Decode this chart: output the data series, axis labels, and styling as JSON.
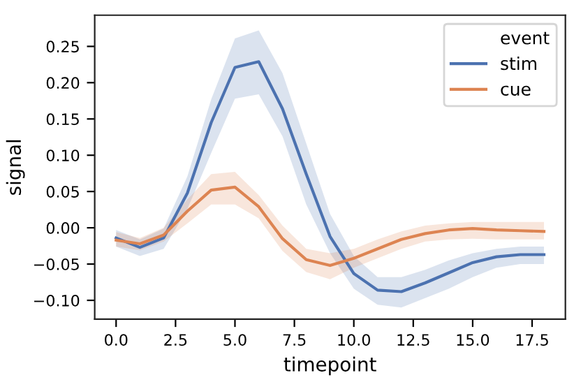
{
  "chart_data": {
    "type": "line",
    "xlabel": "timepoint",
    "ylabel": "signal",
    "legend_title": "event",
    "legend": "top right",
    "grid": false,
    "marker": "none",
    "line_style": "solid",
    "x": [
      0,
      1,
      2,
      3,
      4,
      5,
      6,
      7,
      8,
      9,
      10,
      11,
      12,
      13,
      14,
      15,
      16,
      17,
      18
    ],
    "xlim": [
      -0.9,
      18.9
    ],
    "xticks": [
      {
        "value": 0,
        "label": "0.0"
      },
      {
        "value": 2.5,
        "label": "2.5"
      },
      {
        "value": 5,
        "label": "5.0"
      },
      {
        "value": 7.5,
        "label": "7.5"
      },
      {
        "value": 10,
        "label": "10.0"
      },
      {
        "value": 12.5,
        "label": "12.5"
      },
      {
        "value": 15,
        "label": "15.0"
      },
      {
        "value": 17.5,
        "label": "17.5"
      }
    ],
    "ylim": [
      -0.126,
      0.293
    ],
    "yticks": [
      {
        "value": -0.1,
        "label": "−0.10"
      },
      {
        "value": -0.05,
        "label": "−0.05"
      },
      {
        "value": 0,
        "label": "0.00"
      },
      {
        "value": 0.05,
        "label": "0.05"
      },
      {
        "value": 0.1,
        "label": "0.10"
      },
      {
        "value": 0.15,
        "label": "0.15"
      },
      {
        "value": 0.2,
        "label": "0.20"
      },
      {
        "value": 0.25,
        "label": "0.25"
      }
    ],
    "series": [
      {
        "name": "stim",
        "color": "#4c72b0",
        "values": [
          -0.014,
          -0.027,
          -0.014,
          0.048,
          0.145,
          0.221,
          0.229,
          0.164,
          0.074,
          -0.012,
          -0.063,
          -0.086,
          -0.088,
          -0.076,
          -0.062,
          -0.048,
          -0.04,
          -0.037,
          -0.037
        ],
        "lower": [
          -0.026,
          -0.039,
          -0.029,
          0.026,
          0.103,
          0.178,
          0.184,
          0.126,
          0.032,
          -0.035,
          -0.084,
          -0.106,
          -0.11,
          -0.097,
          -0.084,
          -0.068,
          -0.055,
          -0.05,
          -0.05
        ],
        "upper": [
          -0.003,
          -0.016,
          -0.001,
          0.071,
          0.177,
          0.261,
          0.272,
          0.213,
          0.116,
          0.019,
          -0.039,
          -0.068,
          -0.068,
          -0.058,
          -0.045,
          -0.035,
          -0.029,
          -0.026,
          -0.026
        ]
      },
      {
        "name": "cue",
        "color": "#dd8452",
        "values": [
          -0.017,
          -0.022,
          -0.01,
          0.023,
          0.052,
          0.056,
          0.029,
          -0.015,
          -0.044,
          -0.052,
          -0.042,
          -0.029,
          -0.016,
          -0.008,
          -0.003,
          -0.001,
          -0.003,
          -0.004,
          -0.005
        ],
        "lower": [
          -0.026,
          -0.031,
          -0.019,
          0.006,
          0.032,
          0.032,
          0.013,
          -0.032,
          -0.061,
          -0.071,
          -0.055,
          -0.042,
          -0.029,
          -0.019,
          -0.016,
          -0.015,
          -0.016,
          -0.016,
          -0.016
        ],
        "upper": [
          -0.006,
          -0.014,
          0.0,
          0.039,
          0.074,
          0.077,
          0.045,
          0.003,
          -0.029,
          -0.035,
          -0.029,
          -0.016,
          -0.005,
          0.003,
          0.006,
          0.008,
          0.008,
          0.008,
          0.008
        ]
      }
    ]
  }
}
